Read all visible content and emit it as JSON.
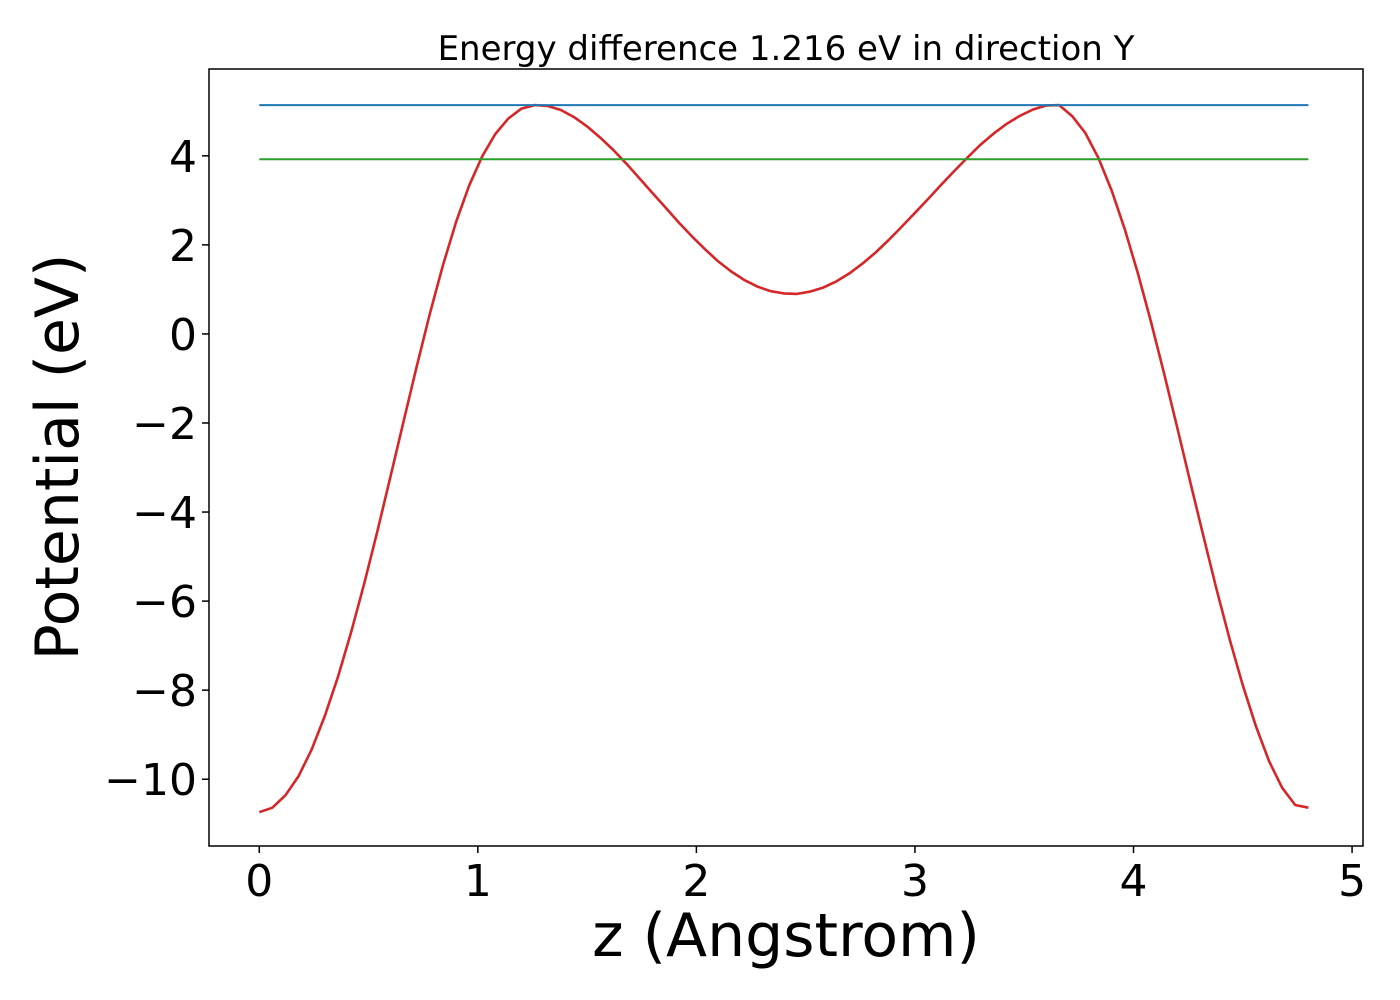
{
  "chart_data": {
    "type": "line",
    "title": "Energy difference 1.216 eV in direction Y",
    "xlabel": "z (Angstrom)",
    "ylabel": "Potential (eV)",
    "xlim": [
      -0.23,
      5.05
    ],
    "ylim": [
      -11.5,
      5.95
    ],
    "xticks": [
      0,
      1,
      2,
      3,
      4,
      5
    ],
    "yticks": [
      -10,
      -8,
      -6,
      -4,
      -2,
      0,
      2,
      4
    ],
    "grid": false,
    "legend": "none",
    "series": [
      {
        "color": "#d62728",
        "x": [
          0.0,
          0.06,
          0.12,
          0.18,
          0.24,
          0.3,
          0.36,
          0.42,
          0.48,
          0.54,
          0.6,
          0.66,
          0.72,
          0.78,
          0.84,
          0.9,
          0.96,
          1.02,
          1.08,
          1.14,
          1.2,
          1.26,
          1.32,
          1.38,
          1.44,
          1.5,
          1.56,
          1.62,
          1.68,
          1.74,
          1.8,
          1.86,
          1.92,
          1.98,
          2.04,
          2.1,
          2.16,
          2.22,
          2.28,
          2.34,
          2.4,
          2.46,
          2.52,
          2.58,
          2.64,
          2.7,
          2.76,
          2.82,
          2.88,
          2.94,
          3.0,
          3.06,
          3.12,
          3.18,
          3.24,
          3.3,
          3.36,
          3.42,
          3.48,
          3.54,
          3.6,
          3.66,
          3.72,
          3.78,
          3.84,
          3.9,
          3.96,
          4.02,
          4.08,
          4.14,
          4.2,
          4.26,
          4.32,
          4.38,
          4.44,
          4.5,
          4.56,
          4.62,
          4.68,
          4.74,
          4.8
        ],
        "y": [
          -10.74,
          -10.64,
          -10.36,
          -9.93,
          -9.33,
          -8.58,
          -7.7,
          -6.7,
          -5.61,
          -4.44,
          -3.21,
          -1.97,
          -0.74,
          0.44,
          1.54,
          2.51,
          3.33,
          3.99,
          4.49,
          4.84,
          5.06,
          5.14,
          5.12,
          5.03,
          4.87,
          4.66,
          4.41,
          4.13,
          3.82,
          3.49,
          3.16,
          2.83,
          2.5,
          2.19,
          1.9,
          1.63,
          1.4,
          1.21,
          1.06,
          0.96,
          0.91,
          0.9,
          0.95,
          1.04,
          1.18,
          1.36,
          1.58,
          1.83,
          2.11,
          2.41,
          2.72,
          3.03,
          3.35,
          3.66,
          3.96,
          4.25,
          4.5,
          4.72,
          4.9,
          5.04,
          5.13,
          5.14,
          4.89,
          4.51,
          3.95,
          3.22,
          2.35,
          1.36,
          0.27,
          -0.89,
          -2.1,
          -3.33,
          -4.55,
          -5.74,
          -6.86,
          -7.89,
          -8.81,
          -9.59,
          -10.19,
          -10.58,
          -10.64
        ]
      },
      {
        "color": "#1f77b4",
        "x": [
          0.0,
          4.8
        ],
        "y": [
          5.14,
          5.14
        ]
      },
      {
        "color": "#2ca02c",
        "x": [
          0.0,
          4.8
        ],
        "y": [
          3.924,
          3.924
        ]
      }
    ]
  }
}
